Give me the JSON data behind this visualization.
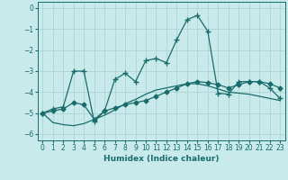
{
  "xlabel": "Humidex (Indice chaleur)",
  "background_color": "#c8eaea",
  "grid_color": "#b0d4d4",
  "line_color": "#1a6b6b",
  "xlim": [
    -0.5,
    23.5
  ],
  "ylim": [
    -6.3,
    0.3
  ],
  "yticks": [
    0,
    -1,
    -2,
    -3,
    -4,
    -5,
    -6
  ],
  "xticks": [
    0,
    1,
    2,
    3,
    4,
    5,
    6,
    7,
    8,
    9,
    10,
    11,
    12,
    13,
    14,
    15,
    16,
    17,
    18,
    19,
    20,
    21,
    22,
    23
  ],
  "series1_x": [
    0,
    1,
    2,
    3,
    4,
    5,
    6,
    7,
    8,
    9,
    10,
    11,
    12,
    13,
    14,
    15,
    16,
    17,
    18,
    19,
    20,
    21,
    22,
    23
  ],
  "series1_y": [
    -5.0,
    -4.8,
    -4.7,
    -3.0,
    -3.0,
    -5.4,
    -4.9,
    -3.4,
    -3.1,
    -3.5,
    -2.5,
    -2.4,
    -2.6,
    -1.5,
    -0.55,
    -0.35,
    -1.1,
    -4.05,
    -4.1,
    -3.5,
    -3.5,
    -3.5,
    -3.8,
    -4.3
  ],
  "series2_x": [
    0,
    1,
    2,
    3,
    4,
    5,
    6,
    7,
    8,
    9,
    10,
    11,
    12,
    13,
    14,
    15,
    16,
    17,
    18,
    19,
    20,
    21,
    22,
    23
  ],
  "series2_y": [
    -5.0,
    -5.45,
    -5.55,
    -5.6,
    -5.5,
    -5.3,
    -5.1,
    -4.85,
    -4.55,
    -4.35,
    -4.1,
    -3.9,
    -3.8,
    -3.7,
    -3.6,
    -3.6,
    -3.7,
    -3.85,
    -4.0,
    -4.05,
    -4.1,
    -4.2,
    -4.3,
    -4.4
  ],
  "series3_x": [
    0,
    1,
    2,
    3,
    4,
    5,
    6,
    7,
    8,
    9,
    10,
    11,
    12,
    13,
    14,
    15,
    16,
    17,
    18,
    19,
    20,
    21,
    22,
    23
  ],
  "series3_y": [
    -5.0,
    -4.9,
    -4.8,
    -4.5,
    -4.6,
    -5.3,
    -4.9,
    -4.75,
    -4.6,
    -4.5,
    -4.4,
    -4.2,
    -4.0,
    -3.8,
    -3.6,
    -3.5,
    -3.55,
    -3.65,
    -3.8,
    -3.65,
    -3.5,
    -3.5,
    -3.6,
    -3.8
  ]
}
